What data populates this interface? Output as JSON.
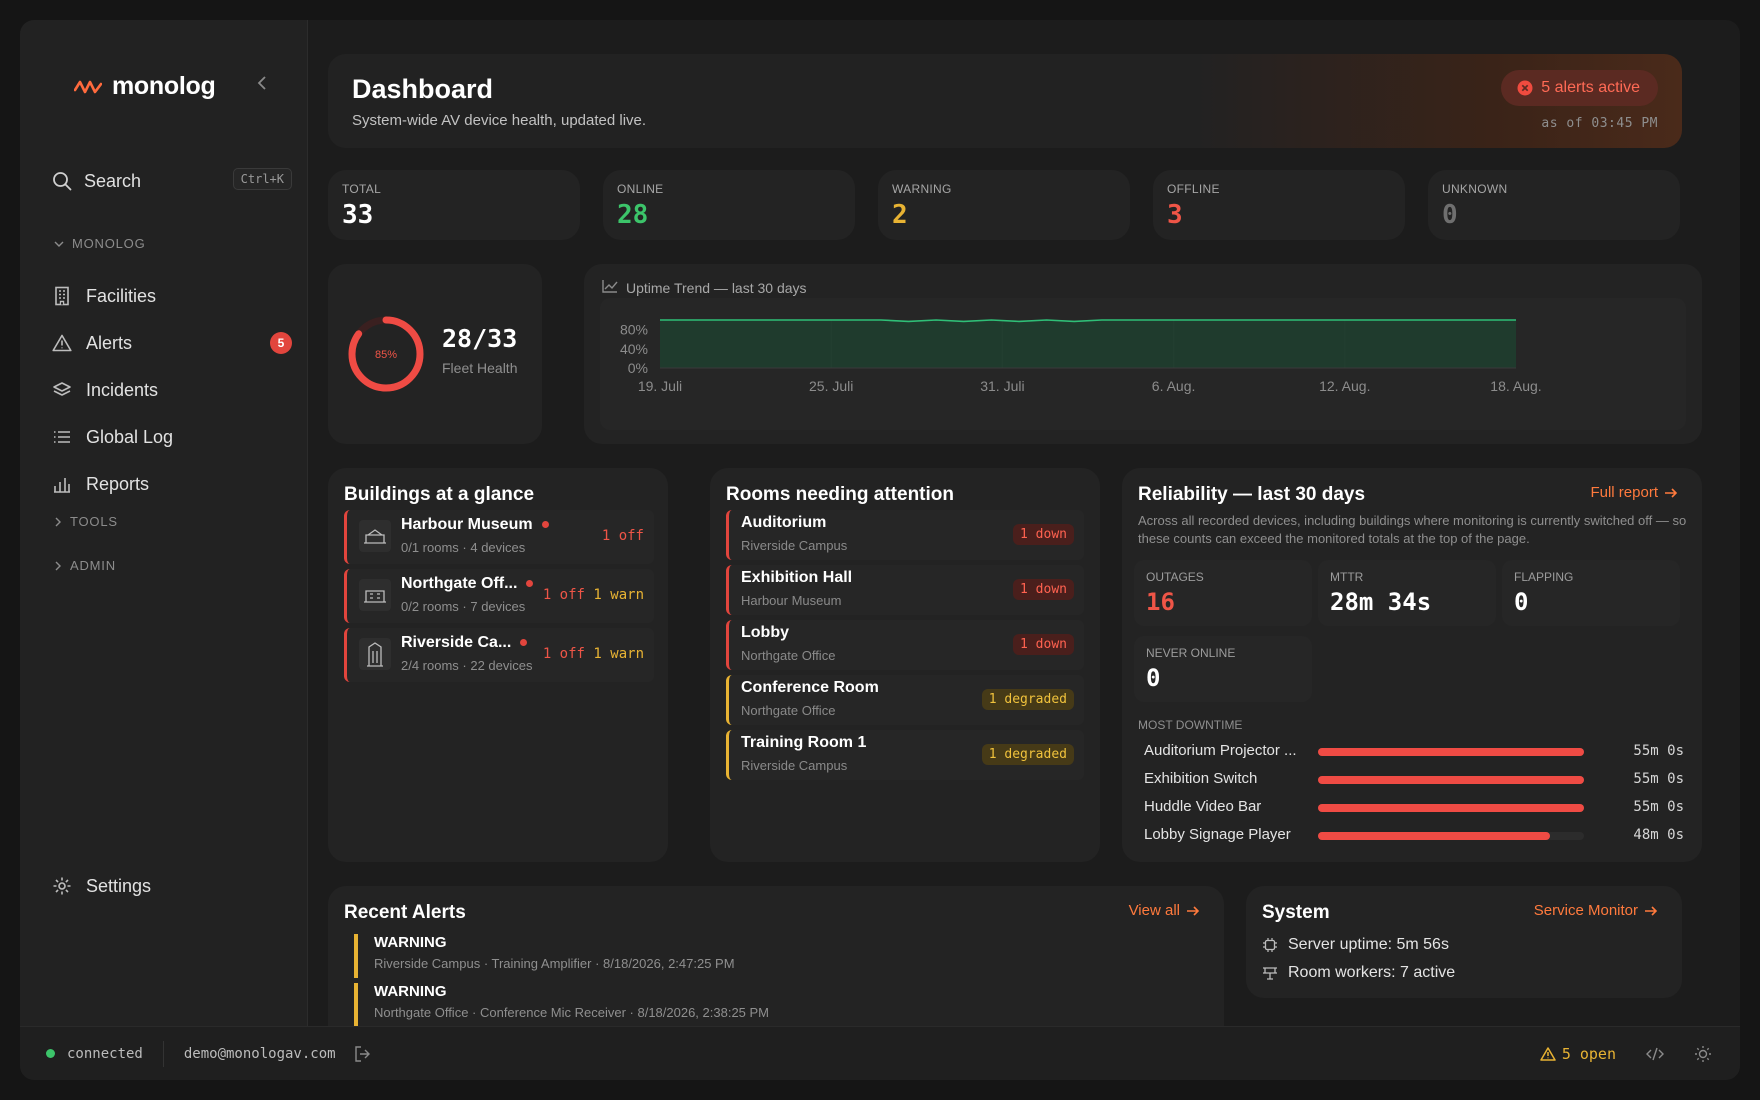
{
  "brand": {
    "name": "monolog"
  },
  "search": {
    "label": "Search",
    "shortcut": "Ctrl+K"
  },
  "sidebar": {
    "section_monolog": "MONOLOG",
    "items": [
      {
        "label": "Facilities",
        "icon": "building-icon"
      },
      {
        "label": "Alerts",
        "icon": "warning-icon",
        "badge": "5"
      },
      {
        "label": "Incidents",
        "icon": "layers-icon"
      },
      {
        "label": "Global Log",
        "icon": "list-icon"
      },
      {
        "label": "Reports",
        "icon": "bar-chart-icon"
      }
    ],
    "section_tools": "TOOLS",
    "section_admin": "ADMIN",
    "settings": "Settings"
  },
  "header": {
    "title": "Dashboard",
    "subtitle": "System-wide AV device health, updated live.",
    "alerts_pill": "5 alerts active",
    "as_of": "as of 03:45 PM"
  },
  "stats": [
    {
      "label": "TOTAL",
      "value": "33",
      "color": "#ffffff"
    },
    {
      "label": "ONLINE",
      "value": "28",
      "color": "#3cc46a"
    },
    {
      "label": "WARNING",
      "value": "2",
      "color": "#e8b333"
    },
    {
      "label": "OFFLINE",
      "value": "3",
      "color": "#ef5547"
    },
    {
      "label": "UNKNOWN",
      "value": "0",
      "color": "#6f6f6f"
    }
  ],
  "fleet": {
    "percent_label": "85%",
    "percent": 0.85,
    "ratio": "28/33",
    "label": "Fleet Health"
  },
  "uptime": {
    "title": "Uptime Trend — last 30 days",
    "chart_data": {
      "type": "area",
      "y_ticks": [
        "80%",
        "40%",
        "0%"
      ],
      "x_ticks": [
        "19. Juli",
        "25. Juli",
        "31. Juli",
        "6. Aug.",
        "12. Aug.",
        "18. Aug."
      ],
      "ylim": [
        0,
        100
      ],
      "values": [
        100,
        100,
        100,
        100,
        100,
        100,
        100,
        100,
        100,
        97,
        100,
        97,
        100,
        97,
        100,
        97,
        100,
        100,
        100,
        100,
        100,
        100,
        100,
        100,
        100,
        100,
        100,
        100,
        100,
        100,
        100,
        100
      ],
      "color": "#2fbf77"
    }
  },
  "buildings": {
    "title": "Buildings at a glance",
    "items": [
      {
        "name": "Harbour Museum",
        "sub": "0/1 rooms · 4 devices",
        "off": "1 off",
        "warn": ""
      },
      {
        "name": "Northgate Off...",
        "sub": "0/2 rooms · 7 devices",
        "off": "1 off",
        "warn": "1 warn"
      },
      {
        "name": "Riverside Ca...",
        "sub": "2/4 rooms · 22 devices",
        "off": "1 off",
        "warn": "1 warn"
      }
    ]
  },
  "rooms": {
    "title": "Rooms needing attention",
    "items": [
      {
        "name": "Auditorium",
        "sub": "Riverside Campus",
        "status": "1 down",
        "kind": "down"
      },
      {
        "name": "Exhibition Hall",
        "sub": "Harbour Museum",
        "status": "1 down",
        "kind": "down"
      },
      {
        "name": "Lobby",
        "sub": "Northgate Office",
        "status": "1 down",
        "kind": "down"
      },
      {
        "name": "Conference Room",
        "sub": "Northgate Office",
        "status": "1 degraded",
        "kind": "degraded"
      },
      {
        "name": "Training Room 1",
        "sub": "Riverside Campus",
        "status": "1 degraded",
        "kind": "degraded"
      }
    ]
  },
  "reliability": {
    "title": "Reliability — last 30 days",
    "link": "Full report",
    "description": "Across all recorded devices, including buildings where monitoring is currently switched off — so these counts can exceed the monitored totals at the top of the page.",
    "metrics": [
      {
        "label": "OUTAGES",
        "value": "16",
        "color": "#ef5547"
      },
      {
        "label": "MTTR",
        "value": "28m 34s",
        "color": "#ffffff"
      },
      {
        "label": "FLAPPING",
        "value": "0",
        "color": "#ffffff"
      },
      {
        "label": "NEVER ONLINE",
        "value": "0",
        "color": "#ffffff"
      }
    ],
    "downtime_label": "MOST DOWNTIME",
    "downtime": [
      {
        "name": "Auditorium Projector ...",
        "value": "55m 0s",
        "fraction": 1.0
      },
      {
        "name": "Exhibition Switch",
        "value": "55m 0s",
        "fraction": 1.0
      },
      {
        "name": "Huddle Video Bar",
        "value": "55m 0s",
        "fraction": 1.0
      },
      {
        "name": "Lobby Signage Player",
        "value": "48m 0s",
        "fraction": 0.873
      }
    ]
  },
  "recent": {
    "title": "Recent Alerts",
    "link": "View all",
    "items": [
      {
        "level": "WARNING",
        "detail": "Riverside Campus · Training Amplifier · 8/18/2026, 2:47:25 PM"
      },
      {
        "level": "WARNING",
        "detail": "Northgate Office · Conference Mic Receiver · 8/18/2026, 2:38:25 PM"
      }
    ]
  },
  "system": {
    "title": "System",
    "link": "Service Monitor",
    "uptime": "Server uptime: 5m 56s",
    "workers": "Room workers: 7 active"
  },
  "statusbar": {
    "connection": "connected",
    "email": "demo@monologav.com",
    "open": "5 open"
  }
}
